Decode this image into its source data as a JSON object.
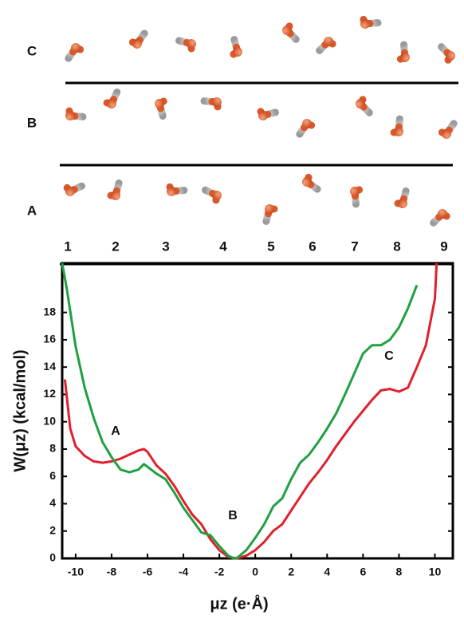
{
  "molecule_panel": {
    "rows": [
      "C",
      "B",
      "A"
    ],
    "columns": [
      1,
      2,
      3,
      4,
      5,
      6,
      7,
      8,
      9
    ]
  },
  "chart_data": {
    "type": "line",
    "xlabel": "μz (e·Å)",
    "ylabel": "W(μz) (kcal/mol)",
    "xlim": [
      -10.75,
      11
    ],
    "ylim": [
      0,
      21.6
    ],
    "xticks": [
      -10,
      -8,
      -6,
      -4,
      -2,
      0,
      2,
      4,
      6,
      8,
      10
    ],
    "yticks": [
      0,
      2,
      4,
      6,
      8,
      10,
      12,
      14,
      16,
      18
    ],
    "annotations": [
      "A",
      "B",
      "C"
    ],
    "series": [
      {
        "color": "#e0202e",
        "x": [
          -10.6,
          -10.3,
          -10,
          -9.5,
          -9,
          -8.5,
          -8,
          -7.5,
          -7,
          -6.5,
          -6.2,
          -6,
          -5.5,
          -5,
          -4.5,
          -4,
          -3.5,
          -3,
          -2.5,
          -2,
          -1.5,
          -1,
          -0.5,
          0,
          0.5,
          1,
          1.5,
          2,
          2.5,
          3,
          3.5,
          4,
          4.5,
          5,
          5.5,
          6,
          6.5,
          7,
          7.5,
          8,
          8.5,
          9,
          9.5,
          10,
          10.1
        ],
        "values": [
          13.1,
          9.5,
          8.2,
          7.5,
          7.1,
          7.0,
          7.1,
          7.3,
          7.6,
          7.9,
          8.0,
          7.8,
          6.8,
          6.2,
          5.3,
          4.2,
          3.2,
          2.5,
          1.4,
          0.6,
          0.1,
          0.0,
          0.2,
          0.6,
          1.2,
          2.0,
          2.5,
          3.5,
          4.5,
          5.5,
          6.3,
          7.2,
          8.2,
          9.1,
          10.0,
          10.8,
          11.6,
          12.3,
          12.4,
          12.2,
          12.5,
          14.0,
          15.6,
          19.0,
          21.6
        ]
      },
      {
        "color": "#1fa040",
        "x": [
          -10.75,
          -10.5,
          -10,
          -9.5,
          -9,
          -8.5,
          -8,
          -7.5,
          -7,
          -6.5,
          -6.2,
          -6,
          -5.5,
          -5,
          -4.5,
          -4,
          -3.5,
          -3,
          -2.5,
          -2,
          -1.5,
          -1.2,
          -1,
          -0.5,
          0,
          0.5,
          1,
          1.5,
          2,
          2.5,
          3,
          3.5,
          4,
          4.5,
          5,
          5.5,
          6,
          6.5,
          7,
          7.5,
          8,
          8.5,
          9
        ],
        "values": [
          21.6,
          19.8,
          15.5,
          12.5,
          10.3,
          8.5,
          7.4,
          6.5,
          6.3,
          6.5,
          6.9,
          6.7,
          6.2,
          5.8,
          4.8,
          3.7,
          2.8,
          1.9,
          1.7,
          0.9,
          0.2,
          0.0,
          0.05,
          0.6,
          1.5,
          2.5,
          3.8,
          4.4,
          5.8,
          7.0,
          7.6,
          8.5,
          9.5,
          10.6,
          12.0,
          13.5,
          15.0,
          15.6,
          15.6,
          16.0,
          16.9,
          18.3,
          20.0
        ]
      }
    ]
  }
}
